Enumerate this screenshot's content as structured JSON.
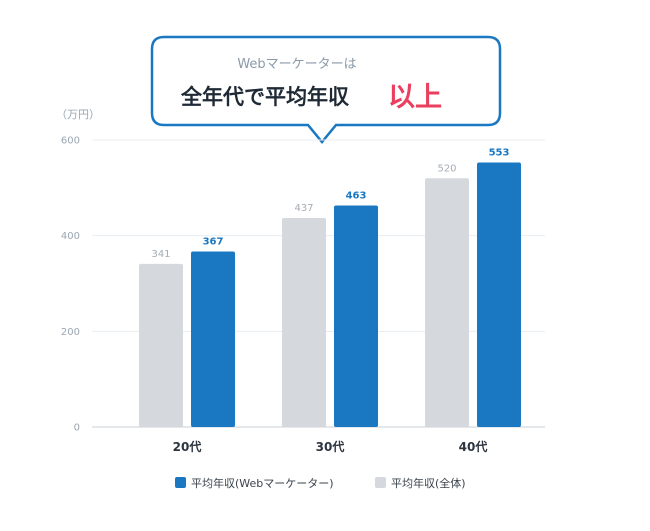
{
  "callout": {
    "subtitle": "Webマーケーターは",
    "headline": "全年代で平均年収",
    "emphasis": "以上"
  },
  "colors": {
    "web": "#1a78c2",
    "all": "#d5d9de",
    "accent": "#ea3f5e",
    "callout_border": "#1a78c2"
  },
  "chart_data": {
    "type": "bar",
    "unit_label": "（万円）",
    "categories": [
      "20代",
      "30代",
      "40代"
    ],
    "series": [
      {
        "name": "平均年収(全体)",
        "values": [
          341,
          437,
          520
        ]
      },
      {
        "name": "平均年収(Webマーケーター)",
        "values": [
          367,
          463,
          553
        ]
      }
    ],
    "yticks": [
      0,
      200,
      400,
      600
    ],
    "ylim": [
      0,
      600
    ],
    "grid": true,
    "legend": {
      "placement": "bottom",
      "entries": [
        "平均年収(Webマーケーター)",
        "平均年収(全体)"
      ]
    }
  }
}
